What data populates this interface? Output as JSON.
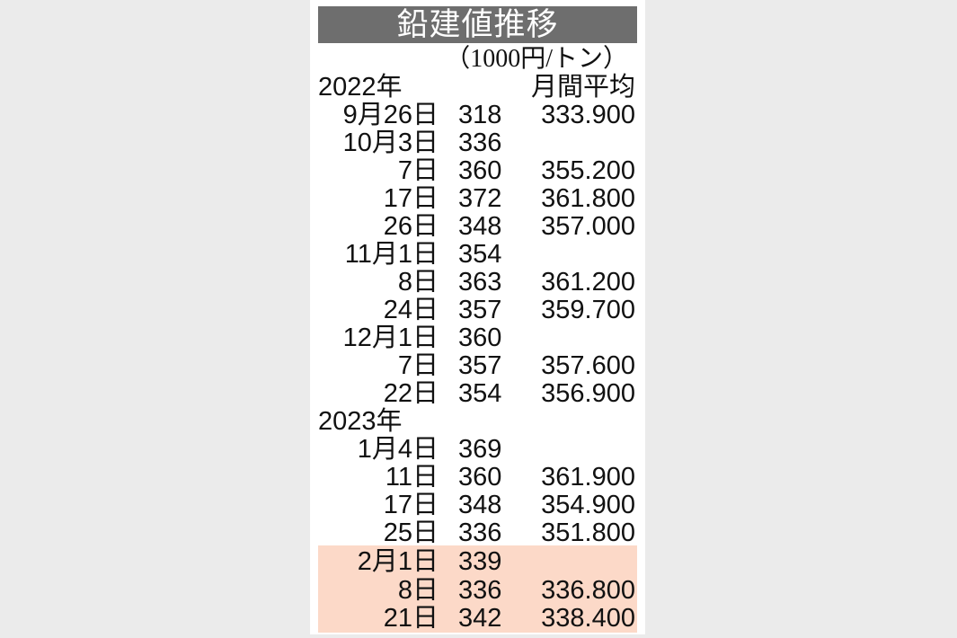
{
  "title": "鉛建値推移",
  "unit": "（1000円/トン）",
  "avg_header": "月間平均",
  "highlight_color": "#fcd9c8",
  "groups": [
    {
      "year": "2022年",
      "rows": [
        {
          "date": "9月26日",
          "value": "318",
          "avg": "333.900"
        },
        {
          "date": "10月3日",
          "value": "336",
          "avg": ""
        },
        {
          "date": "7日",
          "value": "360",
          "avg": "355.200"
        },
        {
          "date": "17日",
          "value": "372",
          "avg": "361.800"
        },
        {
          "date": "26日",
          "value": "348",
          "avg": "357.000"
        },
        {
          "date": "11月1日",
          "value": "354",
          "avg": ""
        },
        {
          "date": "8日",
          "value": "363",
          "avg": "361.200"
        },
        {
          "date": "24日",
          "value": "357",
          "avg": "359.700"
        },
        {
          "date": "12月1日",
          "value": "360",
          "avg": ""
        },
        {
          "date": "7日",
          "value": "357",
          "avg": "357.600"
        },
        {
          "date": "22日",
          "value": "354",
          "avg": "356.900"
        }
      ]
    },
    {
      "year": "2023年",
      "rows": [
        {
          "date": "1月4日",
          "value": "369",
          "avg": ""
        },
        {
          "date": "11日",
          "value": "360",
          "avg": "361.900"
        },
        {
          "date": "17日",
          "value": "348",
          "avg": "354.900"
        },
        {
          "date": "25日",
          "value": "336",
          "avg": "351.800"
        },
        {
          "date": "2月1日",
          "value": "339",
          "avg": "",
          "highlight": true
        },
        {
          "date": "8日",
          "value": "336",
          "avg": "336.800",
          "highlight": true
        },
        {
          "date": "21日",
          "value": "342",
          "avg": "338.400",
          "highlight": true
        }
      ]
    }
  ]
}
